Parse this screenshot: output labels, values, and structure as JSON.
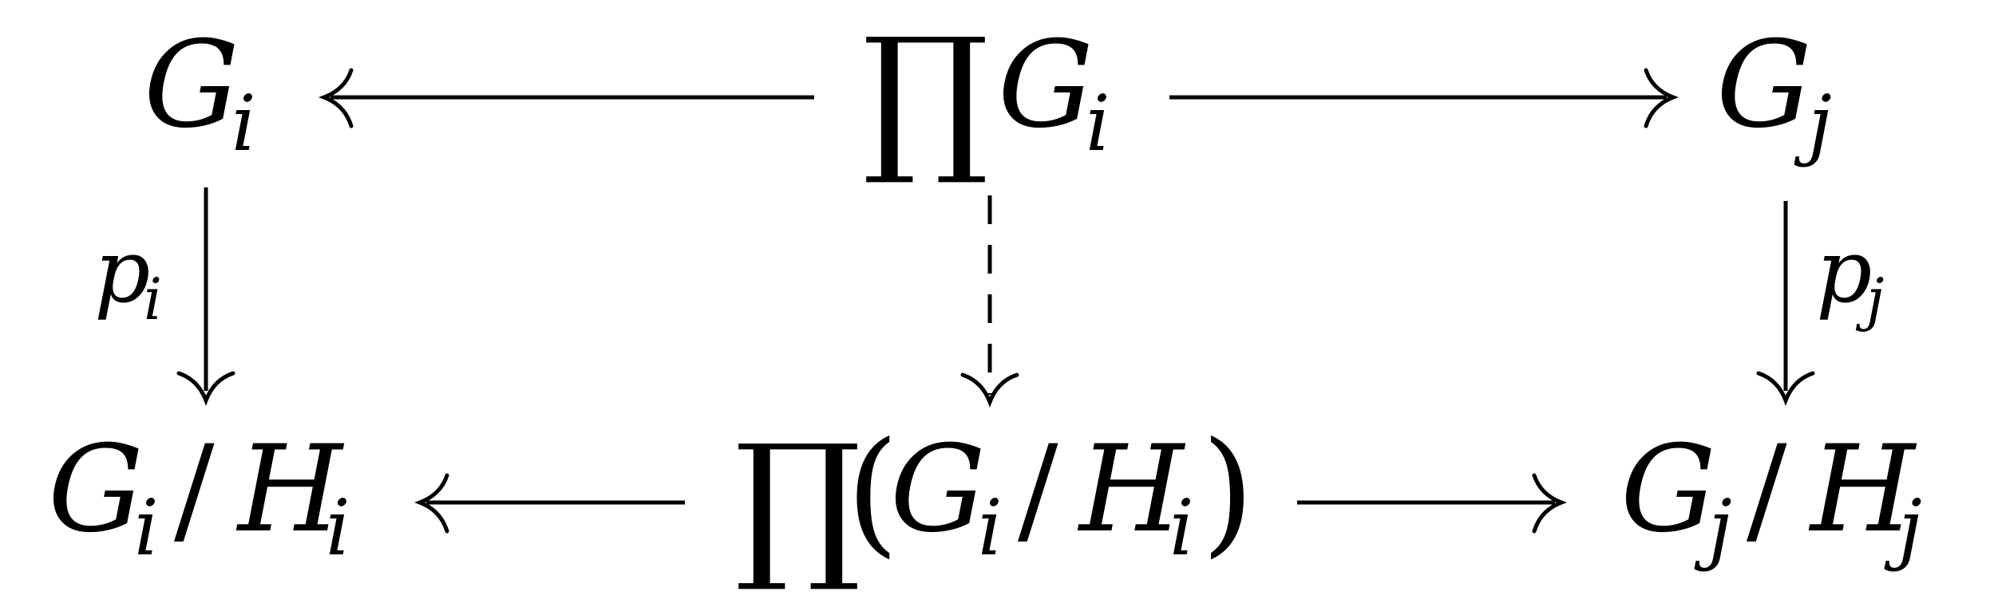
{
  "nodes": {
    "top_left": {
      "base": "G",
      "sub": "i"
    },
    "top_center": {
      "prod": "∏",
      "base": "G",
      "sub": "i"
    },
    "top_right": {
      "base": "G",
      "sub": "j"
    },
    "bottom_left": {
      "base1": "G",
      "sub1": "i",
      "slash": "/",
      "base2": "H",
      "sub2": "i"
    },
    "bottom_center": {
      "prod": "∏",
      "open": "(",
      "base1": "G",
      "sub1": "i",
      "slash": "/",
      "base2": "H",
      "sub2": "i",
      "close": ")"
    },
    "bottom_right": {
      "base1": "G",
      "sub1": "j",
      "slash": "/",
      "base2": "H",
      "sub2": "j"
    }
  },
  "labels": {
    "left_vertical": {
      "base": "p",
      "sub": "i"
    },
    "right_vertical": {
      "base": "p",
      "sub": "j"
    }
  },
  "arrows": {
    "center_vertical_style": "dashed"
  }
}
